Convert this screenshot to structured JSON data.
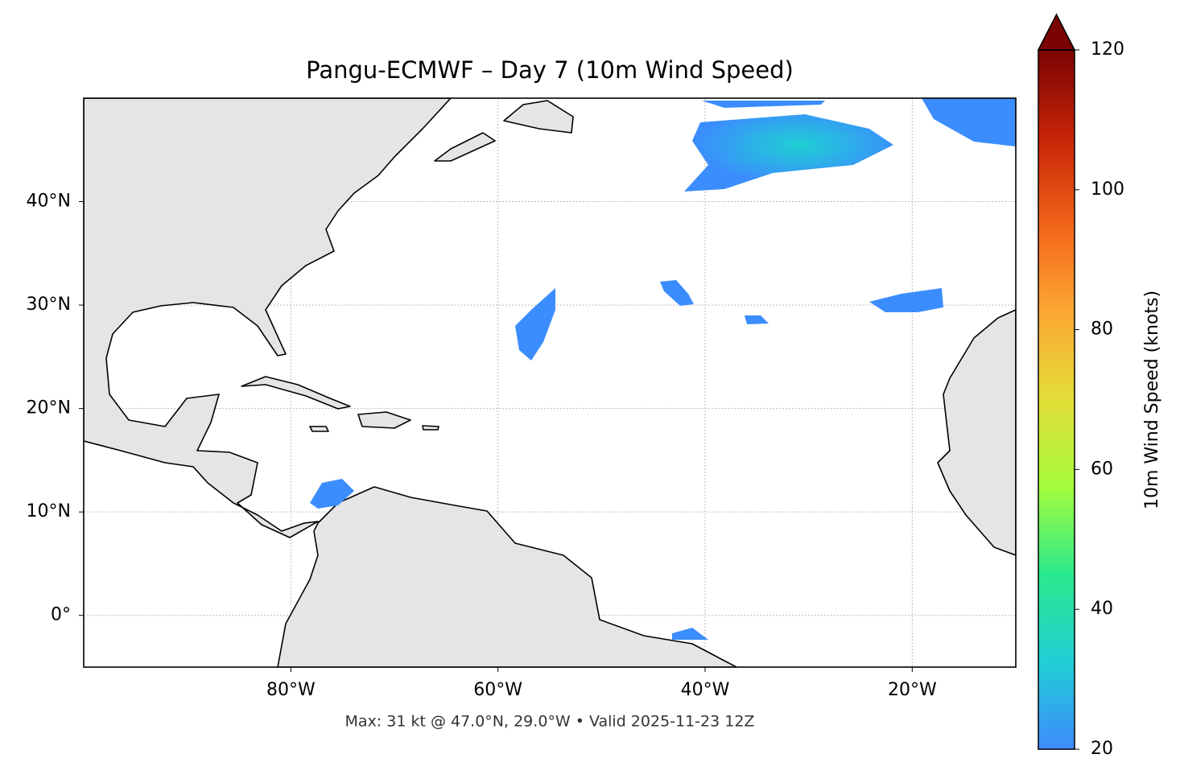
{
  "title": "Pangu-ECMWF – Day 7 (10m Wind Speed)",
  "map": {
    "xlim": [
      -100,
      -10
    ],
    "ylim": [
      -5,
      50
    ],
    "xticks": [
      {
        "value": -80,
        "label": "80°W"
      },
      {
        "value": -60,
        "label": "60°W"
      },
      {
        "value": -40,
        "label": "40°W"
      },
      {
        "value": -20,
        "label": "20°W"
      }
    ],
    "yticks": [
      {
        "value": 0,
        "label": "0°"
      },
      {
        "value": 10,
        "label": "10°N"
      },
      {
        "value": 20,
        "label": "20°N"
      },
      {
        "value": 30,
        "label": "30°N"
      },
      {
        "value": 40,
        "label": "40°N"
      }
    ],
    "grid": true
  },
  "colorbar": {
    "label": "10m Wind Speed (knots)",
    "lim": [
      20,
      120
    ],
    "ticks": [
      20,
      40,
      60,
      80,
      100,
      120
    ],
    "colors": [
      "#3d8bfd",
      "#1fcfd4",
      "#2ae98c",
      "#a4fc3c",
      "#e2dd37",
      "#fca834",
      "#f26419",
      "#c62408",
      "#7a0403"
    ],
    "extend": "max"
  },
  "footnote": "Max: 31 kt @ 47.0°N, 29.0°W • Valid 2025-11-23 12Z"
}
